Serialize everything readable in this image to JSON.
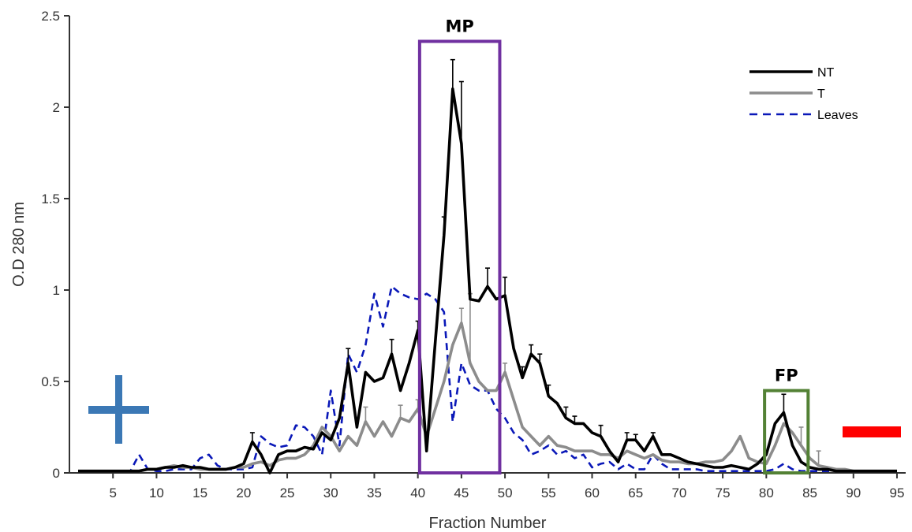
{
  "chart_data": {
    "type": "line",
    "xlabel": "Fraction Number",
    "ylabel": "O.D 280 nm",
    "xlim": [
      0,
      96
    ],
    "ylim": [
      0,
      2.5
    ],
    "xticks": [
      5,
      10,
      15,
      20,
      25,
      30,
      35,
      40,
      45,
      50,
      55,
      60,
      65,
      70,
      75,
      80,
      85,
      90,
      95
    ],
    "yticks": [
      0,
      0.5,
      1,
      1.5,
      2,
      2.5
    ],
    "ytick_labels": [
      "0",
      "0.5",
      "1",
      "1.5",
      "2",
      "2.5"
    ],
    "legend_position": "top-right",
    "series": [
      {
        "name": "NT",
        "color": "#000000",
        "style": "solid",
        "x": [
          1,
          2,
          3,
          4,
          5,
          6,
          7,
          8,
          9,
          10,
          11,
          12,
          13,
          14,
          15,
          16,
          17,
          18,
          19,
          20,
          21,
          22,
          23,
          24,
          25,
          26,
          27,
          28,
          29,
          30,
          31,
          32,
          33,
          34,
          35,
          36,
          37,
          38,
          39,
          40,
          41,
          42,
          43,
          44,
          45,
          46,
          47,
          48,
          49,
          50,
          51,
          52,
          53,
          54,
          55,
          56,
          57,
          58,
          59,
          60,
          61,
          62,
          63,
          64,
          65,
          66,
          67,
          68,
          69,
          70,
          71,
          72,
          73,
          74,
          75,
          76,
          77,
          78,
          79,
          80,
          81,
          82,
          83,
          84,
          85,
          86,
          87,
          88,
          89,
          90,
          91,
          92,
          93,
          94,
          95
        ],
        "y": [
          0.01,
          0.01,
          0.01,
          0.01,
          0.01,
          0.01,
          0.01,
          0.01,
          0.02,
          0.02,
          0.03,
          0.03,
          0.04,
          0.03,
          0.03,
          0.02,
          0.02,
          0.02,
          0.03,
          0.05,
          0.17,
          0.1,
          0.0,
          0.1,
          0.12,
          0.12,
          0.14,
          0.13,
          0.22,
          0.18,
          0.3,
          0.6,
          0.25,
          0.55,
          0.5,
          0.52,
          0.65,
          0.45,
          0.6,
          0.78,
          0.12,
          0.72,
          1.3,
          2.1,
          1.8,
          0.95,
          0.94,
          1.02,
          0.95,
          0.97,
          0.68,
          0.52,
          0.65,
          0.6,
          0.42,
          0.38,
          0.3,
          0.27,
          0.27,
          0.22,
          0.2,
          0.12,
          0.06,
          0.18,
          0.18,
          0.12,
          0.2,
          0.1,
          0.1,
          0.08,
          0.06,
          0.05,
          0.04,
          0.03,
          0.03,
          0.04,
          0.03,
          0.02,
          0.05,
          0.1,
          0.27,
          0.33,
          0.15,
          0.06,
          0.03,
          0.02,
          0.02,
          0.01,
          0.01,
          0.01,
          0.01,
          0.01,
          0.01,
          0.01,
          0.01
        ],
        "err": [
          0,
          0,
          0,
          0,
          0,
          0,
          0,
          0,
          0,
          0,
          0,
          0,
          0,
          0,
          0,
          0,
          0,
          0,
          0,
          0,
          0.05,
          0,
          0,
          0,
          0,
          0,
          0,
          0,
          0,
          0,
          0,
          0.08,
          0,
          0,
          0,
          0,
          0.08,
          0,
          0,
          0.05,
          0,
          0,
          0.1,
          0.16,
          0.34,
          0,
          0,
          0.1,
          0,
          0.1,
          0,
          0.06,
          0.05,
          0.05,
          0.06,
          0,
          0.06,
          0.04,
          0,
          0,
          0.06,
          0,
          0,
          0.04,
          0.03,
          0,
          0.02,
          0,
          0,
          0,
          0,
          0,
          0,
          0,
          0,
          0,
          0,
          0,
          0,
          0,
          0,
          0.1,
          0,
          0,
          0,
          0,
          0,
          0,
          0,
          0,
          0,
          0,
          0,
          0,
          0
        ]
      },
      {
        "name": "T",
        "color": "#8c8c8c",
        "style": "solid",
        "x": [
          1,
          2,
          3,
          4,
          5,
          6,
          7,
          8,
          9,
          10,
          11,
          12,
          13,
          14,
          15,
          16,
          17,
          18,
          19,
          20,
          21,
          22,
          23,
          24,
          25,
          26,
          27,
          28,
          29,
          30,
          31,
          32,
          33,
          34,
          35,
          36,
          37,
          38,
          39,
          40,
          41,
          42,
          43,
          44,
          45,
          46,
          47,
          48,
          49,
          50,
          51,
          52,
          53,
          54,
          55,
          56,
          57,
          58,
          59,
          60,
          61,
          62,
          63,
          64,
          65,
          66,
          67,
          68,
          69,
          70,
          71,
          72,
          73,
          74,
          75,
          76,
          77,
          78,
          79,
          80,
          81,
          82,
          83,
          84,
          85,
          86,
          87,
          88,
          89,
          90,
          91,
          92,
          93,
          94,
          95
        ],
        "y": [
          0.01,
          0.01,
          0.01,
          0.01,
          0.01,
          0.01,
          0.01,
          0.01,
          0.02,
          0.02,
          0.03,
          0.04,
          0.03,
          0.03,
          0.02,
          0.02,
          0.02,
          0.02,
          0.03,
          0.03,
          0.05,
          0.06,
          0.04,
          0.07,
          0.08,
          0.08,
          0.1,
          0.15,
          0.25,
          0.2,
          0.12,
          0.2,
          0.15,
          0.28,
          0.2,
          0.28,
          0.2,
          0.3,
          0.28,
          0.35,
          0.2,
          0.35,
          0.5,
          0.7,
          0.82,
          0.6,
          0.5,
          0.45,
          0.45,
          0.55,
          0.4,
          0.25,
          0.2,
          0.15,
          0.2,
          0.15,
          0.14,
          0.12,
          0.12,
          0.12,
          0.1,
          0.1,
          0.08,
          0.12,
          0.1,
          0.08,
          0.1,
          0.07,
          0.06,
          0.06,
          0.05,
          0.05,
          0.06,
          0.06,
          0.07,
          0.12,
          0.2,
          0.08,
          0.06,
          0.05,
          0.15,
          0.27,
          0.22,
          0.15,
          0.08,
          0.04,
          0.03,
          0.02,
          0.02,
          0.01,
          0.01,
          0.01,
          0.01,
          0.01,
          0.01
        ],
        "err": [
          0,
          0,
          0,
          0,
          0,
          0,
          0,
          0,
          0,
          0,
          0,
          0,
          0,
          0,
          0,
          0,
          0,
          0,
          0,
          0,
          0,
          0,
          0,
          0,
          0,
          0,
          0,
          0,
          0,
          0,
          0,
          0,
          0,
          0.08,
          0,
          0,
          0,
          0.07,
          0,
          0.05,
          0,
          0,
          0,
          0,
          0.08,
          0.38,
          0,
          0,
          0,
          0.05,
          0,
          0,
          0,
          0,
          0,
          0,
          0,
          0,
          0,
          0,
          0,
          0,
          0,
          0,
          0,
          0,
          0,
          0,
          0,
          0,
          0,
          0,
          0,
          0,
          0,
          0,
          0,
          0,
          0,
          0,
          0,
          0,
          0,
          0.1,
          0,
          0.08,
          0,
          0,
          0,
          0,
          0,
          0,
          0,
          0,
          0
        ]
      },
      {
        "name": "Leaves",
        "color": "#0a18b8",
        "style": "dashed",
        "x": [
          1,
          2,
          3,
          4,
          5,
          6,
          7,
          8,
          9,
          10,
          11,
          12,
          13,
          14,
          15,
          16,
          17,
          18,
          19,
          20,
          21,
          22,
          23,
          24,
          25,
          26,
          27,
          28,
          29,
          30,
          31,
          32,
          33,
          34,
          35,
          36,
          37,
          38,
          39,
          40,
          41,
          42,
          43,
          44,
          45,
          46,
          47,
          48,
          49,
          50,
          51,
          52,
          53,
          54,
          55,
          56,
          57,
          58,
          59,
          60,
          61,
          62,
          63,
          64,
          65,
          66,
          67,
          68,
          69,
          70,
          71,
          72,
          73,
          74,
          75,
          76,
          77,
          78,
          79,
          80,
          81,
          82,
          83,
          84,
          85,
          86,
          87,
          88,
          89,
          90,
          91,
          92,
          93,
          94,
          95
        ],
        "y": [
          0.01,
          0.01,
          0.01,
          0.01,
          0.01,
          0.01,
          0.01,
          0.1,
          0.02,
          0.01,
          0.01,
          0.02,
          0.02,
          0.02,
          0.08,
          0.1,
          0.04,
          0.02,
          0.02,
          0.02,
          0.03,
          0.2,
          0.16,
          0.14,
          0.15,
          0.26,
          0.25,
          0.2,
          0.1,
          0.45,
          0.15,
          0.65,
          0.55,
          0.7,
          0.98,
          0.8,
          1.02,
          0.98,
          0.96,
          0.95,
          0.98,
          0.95,
          0.88,
          0.28,
          0.6,
          0.48,
          0.45,
          0.45,
          0.35,
          0.3,
          0.22,
          0.18,
          0.1,
          0.12,
          0.15,
          0.1,
          0.12,
          0.08,
          0.1,
          0.03,
          0.05,
          0.06,
          0.02,
          0.05,
          0.02,
          0.02,
          0.1,
          0.05,
          0.02,
          0.02,
          0.02,
          0.02,
          0.01,
          0.01,
          0.01,
          0.01,
          0.01,
          0.01,
          0.01,
          0.01,
          0.02,
          0.05,
          0.02,
          0.01,
          0.01,
          0.01,
          0.01,
          0.01,
          0.01,
          0.01,
          0.01,
          0.01,
          0.01,
          0.01,
          0.01
        ],
        "err": [
          0,
          0,
          0,
          0,
          0,
          0,
          0,
          0,
          0,
          0,
          0,
          0,
          0,
          0,
          0,
          0,
          0,
          0,
          0,
          0,
          0,
          0,
          0,
          0,
          0,
          0,
          0,
          0,
          0,
          0,
          0,
          0,
          0,
          0,
          0,
          0,
          0,
          0,
          0,
          0,
          0,
          0,
          0,
          0,
          0,
          0,
          0,
          0,
          0,
          0,
          0,
          0,
          0,
          0,
          0,
          0,
          0,
          0,
          0,
          0,
          0,
          0,
          0,
          0,
          0,
          0,
          0,
          0,
          0,
          0,
          0,
          0,
          0,
          0,
          0,
          0,
          0,
          0,
          0,
          0,
          0,
          0,
          0,
          0,
          0,
          0,
          0,
          0,
          0,
          0,
          0,
          0,
          0,
          0,
          0
        ]
      }
    ],
    "annotations": {
      "mp": {
        "label": "MP",
        "x_range": [
          40.2,
          49.4
        ],
        "y_range": [
          0,
          2.36
        ],
        "color": "#7030a0"
      },
      "fp": {
        "label": "FP",
        "x_range": [
          79.8,
          84.8
        ],
        "y_range": [
          0,
          0.45
        ],
        "color": "#538135"
      },
      "plus_color": "#3b78b5",
      "minus_color": "#ff0000"
    }
  }
}
